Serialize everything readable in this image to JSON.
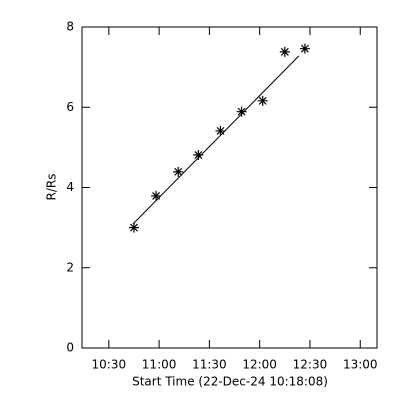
{
  "chart_data": {
    "type": "scatter",
    "x_label": "Start Time (22-Dec-24 10:18:08)",
    "y_label": "R/Rs",
    "x": [
      45,
      58.2,
      71.4,
      83.4,
      96.6,
      109.2,
      121.8,
      135,
      147
    ],
    "series": [
      {
        "color": "#000000",
        "marker": "asterisk",
        "values": [
          3.0,
          3.79,
          4.39,
          4.81,
          5.41,
          5.89,
          6.16,
          7.38,
          7.46
        ]
      }
    ],
    "fit": {
      "color": "#000000",
      "x": [
        44.4,
        143.4
      ],
      "values": [
        3.09,
        7.28
      ]
    },
    "xlim": [
      14,
      190
    ],
    "xticks": [
      {
        "value": 30,
        "label": "10:30"
      },
      {
        "value": 60,
        "label": "11:00"
      },
      {
        "value": 90,
        "label": "11:30"
      },
      {
        "value": 120,
        "label": "12:00"
      },
      {
        "value": 150,
        "label": "12:30"
      },
      {
        "value": 180,
        "label": "13:00"
      }
    ],
    "ylim": [
      0,
      8
    ],
    "yticks": [
      0,
      2,
      4,
      6,
      8
    ]
  }
}
